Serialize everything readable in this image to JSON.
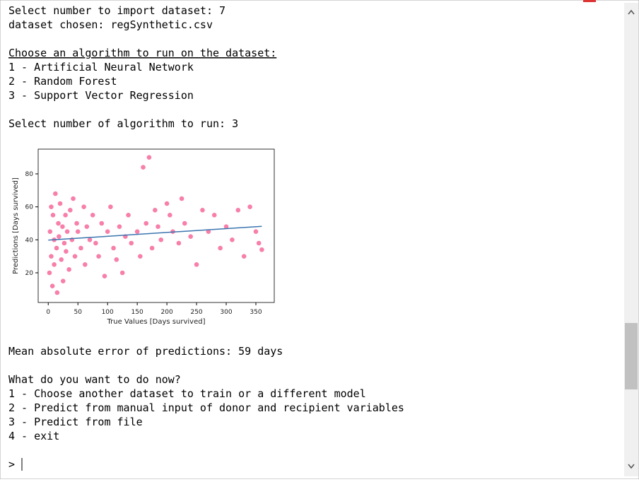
{
  "console_top": [
    "Select number to import dataset: 7",
    "dataset chosen: regSynthetic.csv",
    "Choose an algorithm to run on the dataset:",
    "1 - Artificial Neural Network",
    "2 - Random Forest",
    "3 - Support Vector Regression",
    "Select number of algorithm to run: 3"
  ],
  "chart_data": {
    "type": "scatter",
    "x_label": "True Values [Days survived]",
    "y_label": "Predictions [Days survived]",
    "xlim": [
      -17,
      381
    ],
    "ylim": [
      2,
      95
    ],
    "xticks": [
      0,
      50,
      100,
      150,
      200,
      250,
      300,
      350
    ],
    "yticks": [
      20,
      40,
      60,
      80
    ],
    "color": "#f77faa",
    "x": [
      2,
      3,
      5,
      5,
      7,
      8,
      10,
      10,
      12,
      14,
      15,
      17,
      18,
      20,
      22,
      24,
      25,
      27,
      29,
      30,
      32,
      35,
      37,
      40,
      42,
      45,
      48,
      50,
      55,
      60,
      62,
      65,
      70,
      75,
      80,
      85,
      90,
      95,
      100,
      105,
      110,
      115,
      120,
      125,
      130,
      135,
      140,
      150,
      155,
      160,
      165,
      170,
      175,
      180,
      185,
      190,
      200,
      205,
      210,
      220,
      225,
      230,
      240,
      250,
      260,
      270,
      280,
      290,
      300,
      310,
      320,
      330,
      340,
      350,
      355,
      360
    ],
    "values": [
      20,
      45,
      60,
      30,
      12,
      55,
      40,
      25,
      68,
      35,
      8,
      50,
      42,
      62,
      28,
      48,
      15,
      38,
      55,
      33,
      45,
      22,
      58,
      40,
      65,
      30,
      50,
      45,
      35,
      60,
      25,
      48,
      40,
      55,
      38,
      30,
      50,
      18,
      45,
      60,
      35,
      28,
      48,
      20,
      42,
      55,
      38,
      45,
      30,
      84,
      50,
      90,
      35,
      58,
      48,
      40,
      62,
      55,
      45,
      38,
      65,
      50,
      42,
      25,
      58,
      45,
      55,
      35,
      48,
      40,
      58,
      30,
      60,
      45,
      38,
      34
    ],
    "fit": {
      "x": [
        0,
        360
      ],
      "values": [
        39.8,
        48.2
      ],
      "color": "#3b75af"
    }
  },
  "console_bottom": [
    "Mean absolute error of predictions: 59 days",
    "What do you want to do now?",
    "1 - Choose another dataset to train or a different model",
    "2 - Predict from manual input of donor and recipient variables",
    "3 - Predict from file",
    "4 - exit",
    ">"
  ]
}
